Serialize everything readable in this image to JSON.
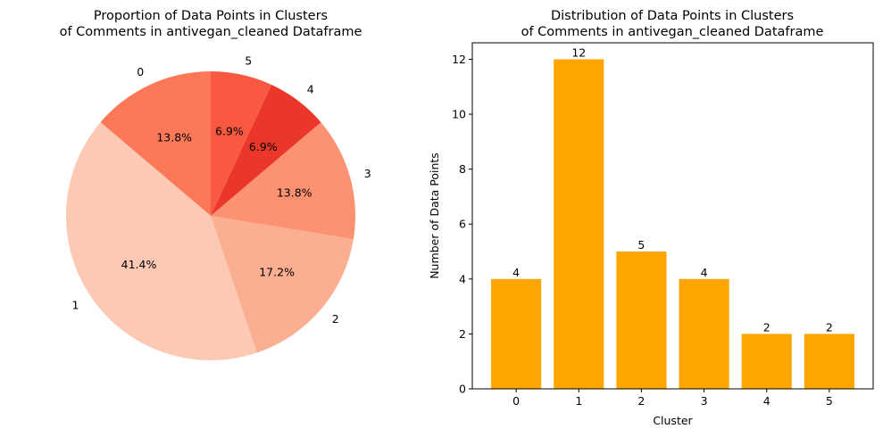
{
  "chart_data": [
    {
      "type": "pie",
      "title_line1": "Proportion of Data Points in Clusters",
      "title_line2": "of Comments in antivegan_cleaned Dataframe",
      "start_angle_deg": 90,
      "direction": "counterclockwise",
      "slices": [
        {
          "label": "0",
          "value": 4,
          "pct": "13.8%",
          "color": "#fc7858"
        },
        {
          "label": "1",
          "value": 12,
          "pct": "41.4%",
          "color": "#fcc9b4"
        },
        {
          "label": "2",
          "value": 5,
          "pct": "17.2%",
          "color": "#fcae92"
        },
        {
          "label": "3",
          "value": 4,
          "pct": "13.8%",
          "color": "#fc9272"
        },
        {
          "label": "4",
          "value": 2,
          "pct": "6.9%",
          "color": "#ea372a"
        },
        {
          "label": "5",
          "value": 2,
          "pct": "6.9%",
          "color": "#f85940"
        }
      ]
    },
    {
      "type": "bar",
      "title_line1": "Distribution of Data Points in Clusters",
      "title_line2": "of Comments in antivegan_cleaned Dataframe",
      "categories": [
        "0",
        "1",
        "2",
        "3",
        "4",
        "5"
      ],
      "values": [
        4,
        12,
        5,
        4,
        2,
        2
      ],
      "bar_color": "#ffa500",
      "xlabel": "Cluster",
      "ylabel": "Number of Data Points",
      "ylim": [
        0,
        12.6
      ],
      "yticks": [
        0,
        2,
        4,
        6,
        8,
        10,
        12
      ],
      "grid": false
    }
  ]
}
